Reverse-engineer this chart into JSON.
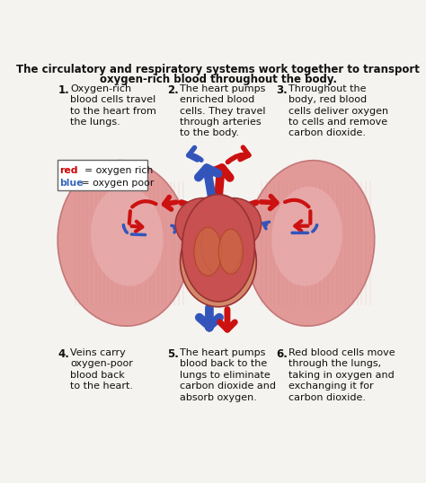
{
  "bg_color": "#f5f3f0",
  "title_line1": "The circulatory and respiratory systems work together to transport",
  "title_line2": "oxygen-rich blood throughout the body.",
  "steps": [
    {
      "num": "1.",
      "text": "Oxygen-rich\nblood cells travel\nto the heart from\nthe lungs."
    },
    {
      "num": "2.",
      "text": "The heart pumps\nenriched blood\ncells. They travel\nthrough arteries\nto the body."
    },
    {
      "num": "3.",
      "text": "Throughout the\nbody, red blood\ncells deliver oxygen\nto cells and remove\ncarbon dioxide."
    },
    {
      "num": "4.",
      "text": "Veins carry\noxygen-poor\nblood back\nto the heart."
    },
    {
      "num": "5.",
      "text": "The heart pumps\nblood back to the\nlungs to eliminate\ncarbon dioxide and\nabsorb oxygen."
    },
    {
      "num": "6.",
      "text": "Red blood cells move\nthrough the lungs,\ntaking in oxygen and\nexchanging it for\ncarbon dioxide."
    }
  ],
  "legend": [
    {
      "label": "red",
      "color": "#cc0000",
      "text": "  = oxygen rich"
    },
    {
      "label": "blue",
      "color": "#3366bb",
      "text": " = oxygen poor"
    }
  ],
  "title_fontsize": 8.5,
  "step_num_fontsize": 8.5,
  "step_text_fontsize": 8.0,
  "legend_fontsize": 7.8,
  "text_color": "#111111",
  "lung_color": "#e09090",
  "lung_edge": "#c07070",
  "lung_inner": "#ebb8b8",
  "heart_color": "#c85050",
  "heart_edge": "#993333",
  "heart_inner": "#d97070",
  "vessel_red": "#cc1111",
  "vessel_blue": "#3355bb"
}
